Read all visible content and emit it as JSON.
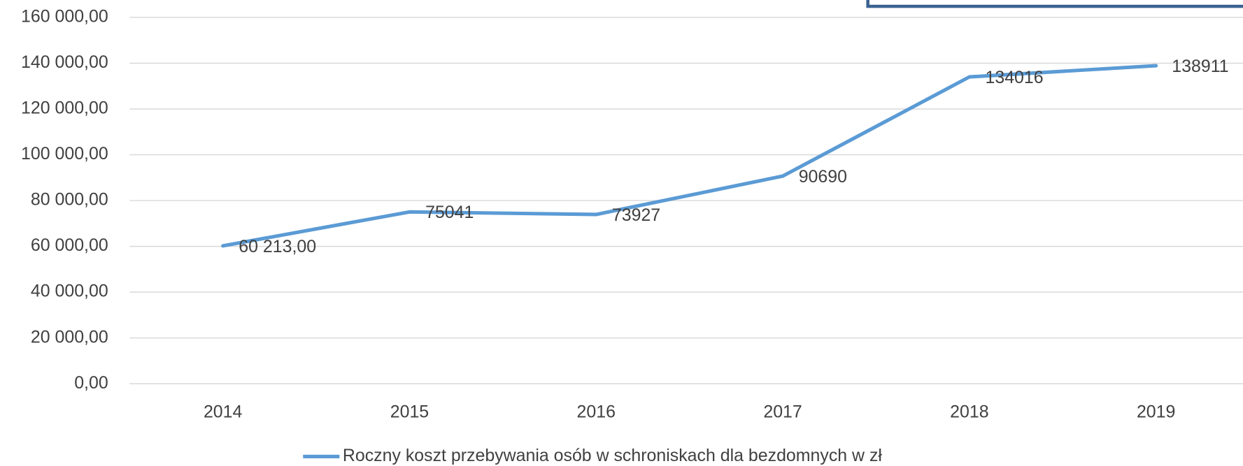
{
  "chart_data": {
    "type": "line",
    "categories": [
      "2014",
      "2015",
      "2016",
      "2017",
      "2018",
      "2019"
    ],
    "series": [
      {
        "name": "Roczny koszt przebywania osób w schroniskach dla bezdomnych w zł",
        "color": "#5b9bd5",
        "values": [
          60213,
          75041,
          73927,
          90690,
          134016,
          138911
        ],
        "value_labels": [
          "60 213,00",
          "75041",
          "73927",
          "90690",
          "134016",
          "138911"
        ]
      }
    ],
    "ylim": [
      0,
      160000
    ],
    "yticks": [
      {
        "value": 0,
        "label": "0,00"
      },
      {
        "value": 20000,
        "label": "20 000,00"
      },
      {
        "value": 40000,
        "label": "40 000,00"
      },
      {
        "value": 60000,
        "label": "60 000,00"
      },
      {
        "value": 80000,
        "label": "80 000,00"
      },
      {
        "value": 100000,
        "label": "100 000,00"
      },
      {
        "value": 120000,
        "label": "120 000,00"
      },
      {
        "value": 140000,
        "label": "140 000,00"
      },
      {
        "value": 160000,
        "label": "160 000,00"
      }
    ],
    "grid": true,
    "legend": "bottom"
  }
}
